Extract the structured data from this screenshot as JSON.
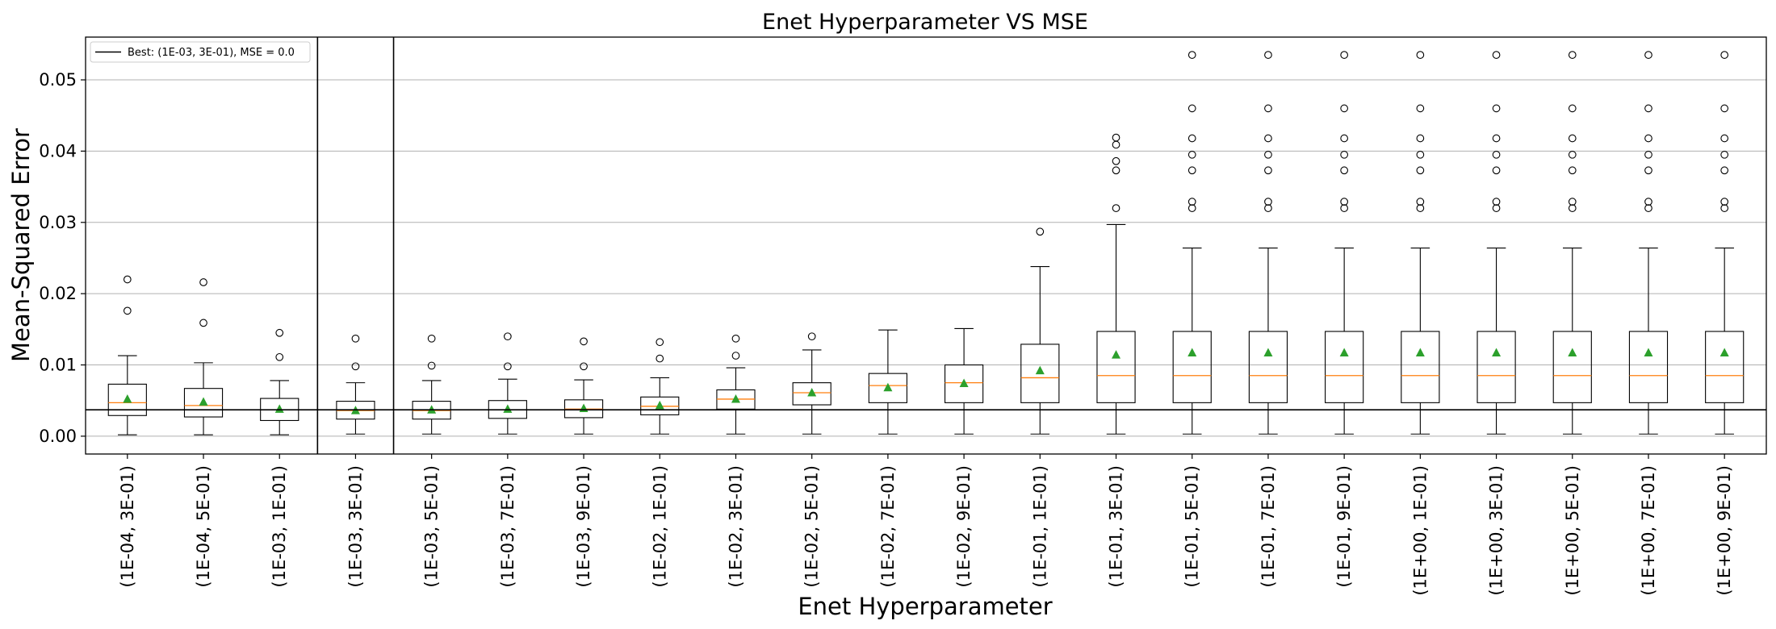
{
  "chart_data": {
    "type": "boxplot",
    "title": "Enet Hyperparameter VS MSE",
    "xlabel": "Enet Hyperparameter",
    "ylabel": "Mean-Squared Error",
    "ylim": [
      -0.0025,
      0.056
    ],
    "yticks": [
      "0.00",
      "0.01",
      "0.02",
      "0.03",
      "0.04",
      "0.05"
    ],
    "ytick_values": [
      0,
      0.01,
      0.02,
      0.03,
      0.04,
      0.05
    ],
    "grid": "horizontal",
    "legend": {
      "placement": "top-left",
      "label": "Best: (1E-03, 3E-01), MSE = 0.0"
    },
    "best_index": 3,
    "best_line_y": 0.0037,
    "colors": {
      "box": "#000000",
      "median": "#ff7f0e",
      "mean": "#2ca02c",
      "grid": "#b0b0b0"
    },
    "boxes": [
      {
        "label": "(1E-04, 3E-01)",
        "whislo": 0.0002,
        "q1": 0.0029,
        "med": 0.0047,
        "q3": 0.0073,
        "whishi": 0.0113,
        "mean": 0.0052,
        "fliers": [
          0.0176,
          0.022
        ]
      },
      {
        "label": "(1E-04, 5E-01)",
        "whislo": 0.0002,
        "q1": 0.0027,
        "med": 0.0043,
        "q3": 0.0067,
        "whishi": 0.0103,
        "mean": 0.0048,
        "fliers": [
          0.0159,
          0.0216
        ]
      },
      {
        "label": "(1E-03, 1E-01)",
        "whislo": 0.0002,
        "q1": 0.0022,
        "med": 0.0037,
        "q3": 0.0053,
        "whishi": 0.0078,
        "mean": 0.0038,
        "fliers": [
          0.0111,
          0.0145
        ]
      },
      {
        "label": "(1E-03, 3E-01)",
        "whislo": 0.0003,
        "q1": 0.0024,
        "med": 0.0036,
        "q3": 0.0049,
        "whishi": 0.0075,
        "mean": 0.0036,
        "fliers": [
          0.0098,
          0.0137
        ]
      },
      {
        "label": "(1E-03, 5E-01)",
        "whislo": 0.0003,
        "q1": 0.0024,
        "med": 0.0036,
        "q3": 0.0049,
        "whishi": 0.0078,
        "mean": 0.0037,
        "fliers": [
          0.0099,
          0.0137
        ]
      },
      {
        "label": "(1E-03, 7E-01)",
        "whislo": 0.0003,
        "q1": 0.0025,
        "med": 0.0037,
        "q3": 0.005,
        "whishi": 0.008,
        "mean": 0.0038,
        "fliers": [
          0.0098,
          0.014
        ]
      },
      {
        "label": "(1E-03, 9E-01)",
        "whislo": 0.0003,
        "q1": 0.0026,
        "med": 0.0038,
        "q3": 0.0051,
        "whishi": 0.0079,
        "mean": 0.0039,
        "fliers": [
          0.0098,
          0.0133
        ]
      },
      {
        "label": "(1E-02, 1E-01)",
        "whislo": 0.0003,
        "q1": 0.003,
        "med": 0.0042,
        "q3": 0.0055,
        "whishi": 0.0082,
        "mean": 0.0043,
        "fliers": [
          0.0109,
          0.0132
        ]
      },
      {
        "label": "(1E-02, 3E-01)",
        "whislo": 0.0003,
        "q1": 0.0038,
        "med": 0.0052,
        "q3": 0.0065,
        "whishi": 0.0096,
        "mean": 0.0052,
        "fliers": [
          0.0113,
          0.0137
        ]
      },
      {
        "label": "(1E-02, 5E-01)",
        "whislo": 0.0003,
        "q1": 0.0044,
        "med": 0.0061,
        "q3": 0.0075,
        "whishi": 0.0121,
        "mean": 0.0061,
        "fliers": [
          0.014
        ]
      },
      {
        "label": "(1E-02, 7E-01)",
        "whislo": 0.0003,
        "q1": 0.0047,
        "med": 0.0071,
        "q3": 0.0088,
        "whishi": 0.0149,
        "mean": 0.0068,
        "fliers": []
      },
      {
        "label": "(1E-02, 9E-01)",
        "whislo": 0.0003,
        "q1": 0.0047,
        "med": 0.0075,
        "q3": 0.01,
        "whishi": 0.0151,
        "mean": 0.0074,
        "fliers": []
      },
      {
        "label": "(1E-01, 1E-01)",
        "whislo": 0.0003,
        "q1": 0.0047,
        "med": 0.0082,
        "q3": 0.0129,
        "whishi": 0.0238,
        "mean": 0.0092,
        "fliers": [
          0.0287
        ]
      },
      {
        "label": "(1E-01, 3E-01)",
        "whislo": 0.0003,
        "q1": 0.0047,
        "med": 0.0085,
        "q3": 0.0147,
        "whishi": 0.0297,
        "mean": 0.0114,
        "fliers": [
          0.032,
          0.0373,
          0.0386,
          0.0409,
          0.0419
        ]
      },
      {
        "label": "(1E-01, 5E-01)",
        "whislo": 0.0003,
        "q1": 0.0047,
        "med": 0.0085,
        "q3": 0.0147,
        "whishi": 0.0264,
        "mean": 0.0117,
        "fliers": [
          0.032,
          0.0329,
          0.0373,
          0.0395,
          0.0418,
          0.046,
          0.0535
        ]
      },
      {
        "label": "(1E-01, 7E-01)",
        "whislo": 0.0003,
        "q1": 0.0047,
        "med": 0.0085,
        "q3": 0.0147,
        "whishi": 0.0264,
        "mean": 0.0117,
        "fliers": [
          0.032,
          0.0329,
          0.0373,
          0.0395,
          0.0418,
          0.046,
          0.0535
        ]
      },
      {
        "label": "(1E-01, 9E-01)",
        "whislo": 0.0003,
        "q1": 0.0047,
        "med": 0.0085,
        "q3": 0.0147,
        "whishi": 0.0264,
        "mean": 0.0117,
        "fliers": [
          0.032,
          0.0329,
          0.0373,
          0.0395,
          0.0418,
          0.046,
          0.0535
        ]
      },
      {
        "label": "(1E+00, 1E-01)",
        "whislo": 0.0003,
        "q1": 0.0047,
        "med": 0.0085,
        "q3": 0.0147,
        "whishi": 0.0264,
        "mean": 0.0117,
        "fliers": [
          0.032,
          0.0329,
          0.0373,
          0.0395,
          0.0418,
          0.046,
          0.0535
        ]
      },
      {
        "label": "(1E+00, 3E-01)",
        "whislo": 0.0003,
        "q1": 0.0047,
        "med": 0.0085,
        "q3": 0.0147,
        "whishi": 0.0264,
        "mean": 0.0117,
        "fliers": [
          0.032,
          0.0329,
          0.0373,
          0.0395,
          0.0418,
          0.046,
          0.0535
        ]
      },
      {
        "label": "(1E+00, 5E-01)",
        "whislo": 0.0003,
        "q1": 0.0047,
        "med": 0.0085,
        "q3": 0.0147,
        "whishi": 0.0264,
        "mean": 0.0117,
        "fliers": [
          0.032,
          0.0329,
          0.0373,
          0.0395,
          0.0418,
          0.046,
          0.0535
        ]
      },
      {
        "label": "(1E+00, 7E-01)",
        "whislo": 0.0003,
        "q1": 0.0047,
        "med": 0.0085,
        "q3": 0.0147,
        "whishi": 0.0264,
        "mean": 0.0117,
        "fliers": [
          0.032,
          0.0329,
          0.0373,
          0.0395,
          0.0418,
          0.046,
          0.0535
        ]
      },
      {
        "label": "(1E+00, 9E-01)",
        "whislo": 0.0003,
        "q1": 0.0047,
        "med": 0.0085,
        "q3": 0.0147,
        "whishi": 0.0264,
        "mean": 0.0117,
        "fliers": [
          0.032,
          0.0329,
          0.0373,
          0.0395,
          0.0418,
          0.046,
          0.0535
        ]
      }
    ]
  }
}
